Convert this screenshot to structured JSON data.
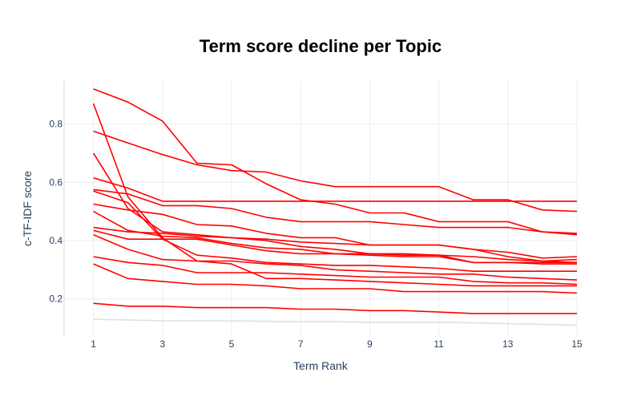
{
  "chart_data": {
    "type": "line",
    "title": "Term score decline per Topic",
    "xlabel": "Term Rank",
    "ylabel": "c-TF-IDF score",
    "xlim": [
      0.15,
      15
    ],
    "ylim": [
      0.07,
      0.95
    ],
    "x_ticks": [
      1,
      3,
      5,
      7,
      9,
      11,
      13,
      15
    ],
    "y_ticks": [
      0.2,
      0.4,
      0.6,
      0.8
    ],
    "y_tick_labels": [
      "0.2",
      "0.4",
      "0.6",
      "0.8"
    ],
    "grid": true,
    "legend": "none",
    "colors": {
      "series": "#ff0000",
      "faint_series": "#e0e0e0"
    },
    "x": [
      1,
      2,
      3,
      4,
      5,
      6,
      7,
      8,
      9,
      10,
      11,
      12,
      13,
      14,
      15
    ],
    "series": [
      {
        "values": [
          0.92,
          0.875,
          0.81,
          0.665,
          0.66,
          0.595,
          0.54,
          0.525,
          0.495,
          0.495,
          0.465,
          0.465,
          0.465,
          0.43,
          0.42
        ]
      },
      {
        "values": [
          0.87,
          0.55,
          0.41,
          0.33,
          0.32,
          0.27,
          0.27,
          0.265,
          0.26,
          0.255,
          0.25,
          0.245,
          0.245,
          0.245,
          0.245
        ]
      },
      {
        "values": [
          0.775,
          0.735,
          0.695,
          0.66,
          0.64,
          0.635,
          0.605,
          0.585,
          0.585,
          0.585,
          0.585,
          0.54,
          0.54,
          0.505,
          0.5
        ]
      },
      {
        "values": [
          0.7,
          0.51,
          0.43,
          0.42,
          0.41,
          0.405,
          0.395,
          0.39,
          0.385,
          0.385,
          0.385,
          0.37,
          0.345,
          0.33,
          0.325
        ]
      },
      {
        "values": [
          0.615,
          0.58,
          0.535,
          0.535,
          0.535,
          0.535,
          0.535,
          0.535,
          0.535,
          0.535,
          0.535,
          0.535,
          0.535,
          0.535,
          0.535
        ]
      },
      {
        "values": [
          0.575,
          0.56,
          0.52,
          0.52,
          0.51,
          0.48,
          0.465,
          0.465,
          0.465,
          0.455,
          0.445,
          0.445,
          0.445,
          0.43,
          0.425
        ]
      },
      {
        "values": [
          0.57,
          0.53,
          0.405,
          0.35,
          0.34,
          0.325,
          0.32,
          0.315,
          0.315,
          0.31,
          0.305,
          0.295,
          0.295,
          0.295,
          0.295
        ]
      },
      {
        "values": [
          0.525,
          0.505,
          0.49,
          0.455,
          0.45,
          0.425,
          0.41,
          0.41,
          0.385,
          0.385,
          0.385,
          0.37,
          0.36,
          0.34,
          0.345
        ]
      },
      {
        "values": [
          0.5,
          0.435,
          0.415,
          0.41,
          0.39,
          0.375,
          0.37,
          0.355,
          0.355,
          0.35,
          0.35,
          0.325,
          0.325,
          0.325,
          0.325
        ]
      },
      {
        "values": [
          0.445,
          0.43,
          0.425,
          0.415,
          0.41,
          0.4,
          0.38,
          0.37,
          0.355,
          0.355,
          0.35,
          0.345,
          0.335,
          0.33,
          0.335
        ]
      },
      {
        "values": [
          0.435,
          0.405,
          0.405,
          0.405,
          0.385,
          0.365,
          0.355,
          0.355,
          0.35,
          0.345,
          0.345,
          0.325,
          0.325,
          0.32,
          0.32
        ]
      },
      {
        "values": [
          0.42,
          0.37,
          0.335,
          0.33,
          0.33,
          0.32,
          0.315,
          0.3,
          0.295,
          0.29,
          0.285,
          0.285,
          0.275,
          0.27,
          0.265
        ]
      },
      {
        "values": [
          0.345,
          0.325,
          0.315,
          0.29,
          0.29,
          0.29,
          0.285,
          0.28,
          0.275,
          0.275,
          0.275,
          0.26,
          0.255,
          0.255,
          0.25
        ]
      },
      {
        "values": [
          0.32,
          0.27,
          0.26,
          0.25,
          0.25,
          0.245,
          0.235,
          0.235,
          0.235,
          0.225,
          0.225,
          0.225,
          0.225,
          0.225,
          0.22
        ]
      },
      {
        "values": [
          0.185,
          0.175,
          0.175,
          0.17,
          0.17,
          0.17,
          0.165,
          0.165,
          0.16,
          0.16,
          0.155,
          0.15,
          0.15,
          0.15,
          0.15
        ]
      },
      {
        "faint": true,
        "values": [
          0.13,
          0.128,
          0.125,
          0.125,
          0.125,
          0.123,
          0.122,
          0.122,
          0.12,
          0.12,
          0.12,
          0.118,
          0.115,
          0.113,
          0.11
        ]
      }
    ]
  }
}
